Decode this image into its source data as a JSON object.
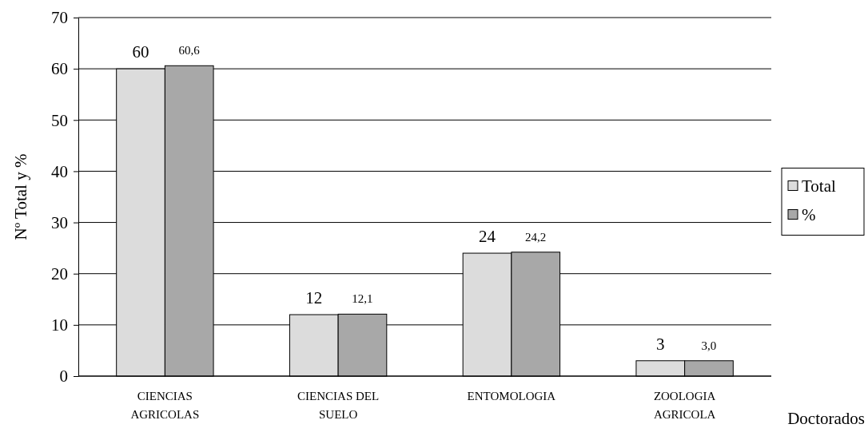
{
  "chart_data": {
    "type": "bar",
    "ylabel": "Nº Total y %",
    "xlabel": "Doctorados",
    "categories": [
      "CIENCIAS AGRICOLAS",
      "CIENCIAS DEL SUELO",
      "ENTOMOLOGIA",
      "ZOOLOGIA AGRICOLA"
    ],
    "series": [
      {
        "name": "Total",
        "color": "#dcdcdc",
        "values": [
          60,
          12,
          24,
          3
        ],
        "value_labels": [
          "60",
          "12",
          "24",
          "3"
        ]
      },
      {
        "name": "%",
        "color": "#a8a8a8",
        "values": [
          60.6,
          12.1,
          24.2,
          3.0
        ],
        "value_labels": [
          "60,6",
          "12,1",
          "24,2",
          "3,0"
        ]
      }
    ],
    "ylim": [
      0,
      70
    ],
    "yticks": [
      0,
      10,
      20,
      30,
      40,
      50,
      60,
      70
    ],
    "grid": "y",
    "legend": "right"
  }
}
